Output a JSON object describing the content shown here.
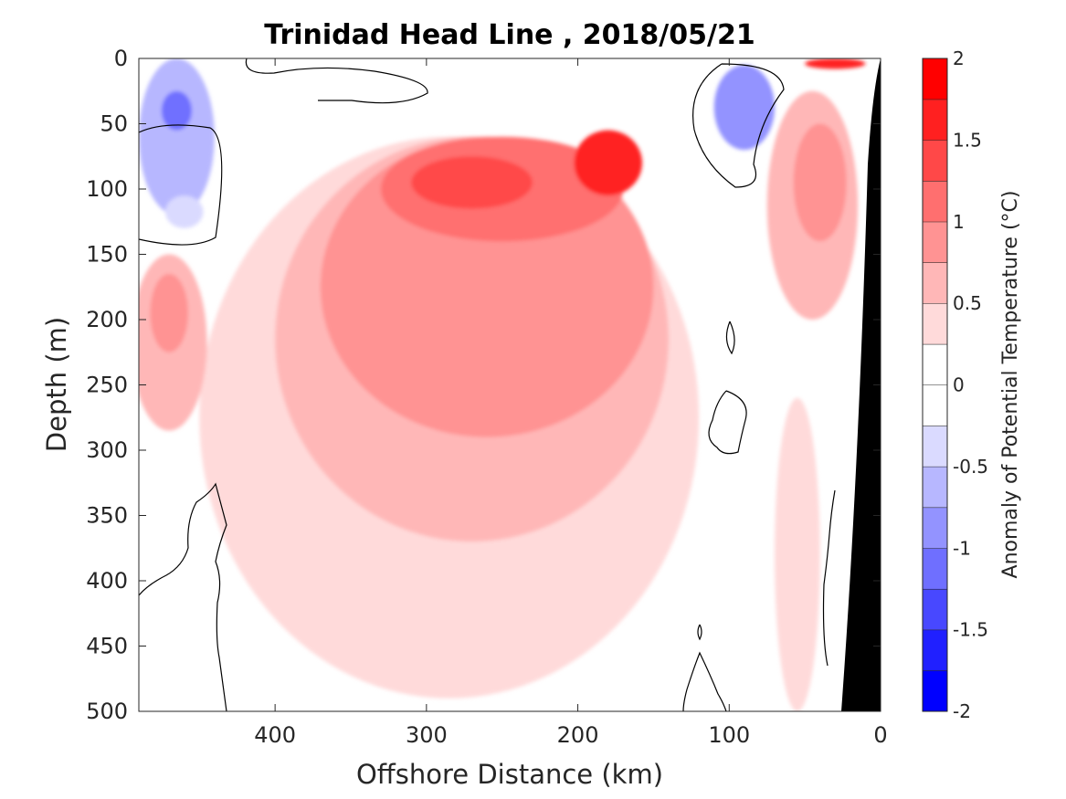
{
  "chart_data": {
    "type": "heatmap",
    "title": "Trinidad Head Line , 2018/05/21",
    "xlabel": "Offshore Distance (km)",
    "ylabel": "Depth (m)",
    "colorbar_label": "Anomaly of Potential Temperature (°C)",
    "xlim": [
      490,
      0
    ],
    "ylim": [
      500,
      0
    ],
    "x_ticks": [
      400,
      300,
      200,
      100,
      0
    ],
    "y_ticks": [
      0,
      50,
      100,
      150,
      200,
      250,
      300,
      350,
      400,
      450,
      500
    ],
    "colorbar_ticks": [
      2,
      1.5,
      1,
      0.5,
      0,
      -0.5,
      -1,
      -1.5,
      -2
    ],
    "colorbar_levels": [
      -2,
      -1.75,
      -1.5,
      -1.25,
      -1,
      -0.75,
      -0.5,
      -0.25,
      0,
      0.25,
      0.5,
      0.75,
      1,
      1.25,
      1.5,
      1.75,
      2
    ],
    "colorbar_colors": [
      "#0000ff",
      "#2020ff",
      "#4848ff",
      "#6f6fff",
      "#9393ff",
      "#b7b7ff",
      "#dadaff",
      "#ffffff",
      "#ffffff",
      "#ffdada",
      "#ffb7b7",
      "#ff9393",
      "#ff6f6f",
      "#ff4848",
      "#ff2020",
      "#ff0000"
    ],
    "bathymetry_color": "#000000",
    "grid": false,
    "features": [
      {
        "kind": "positive",
        "level": 0.25,
        "center_km": 285,
        "center_m": 210,
        "width_km": 330,
        "depth_range_m": [
          60,
          490
        ]
      },
      {
        "kind": "positive",
        "level": 0.5,
        "center_km": 270,
        "center_m": 180,
        "width_km": 260,
        "depth_range_m": [
          60,
          370
        ]
      },
      {
        "kind": "positive",
        "level": 0.75,
        "center_km": 260,
        "center_m": 140,
        "width_km": 220,
        "depth_range_m": [
          60,
          290
        ]
      },
      {
        "kind": "positive",
        "level": 1.0,
        "center_km": 250,
        "center_m": 95,
        "width_km": 160,
        "depth_range_m": [
          60,
          140
        ]
      },
      {
        "kind": "positive",
        "level": 1.25,
        "center_km": 270,
        "center_m": 95,
        "width_km": 80,
        "depth_range_m": [
          75,
          115
        ]
      },
      {
        "kind": "positive",
        "level": 1.5,
        "center_km": 180,
        "center_m": 80,
        "width_km": 45,
        "depth_range_m": [
          55,
          105
        ]
      },
      {
        "kind": "positive",
        "level": 0.5,
        "center_km": 470,
        "center_m": 215,
        "width_km": 50,
        "depth_range_m": [
          150,
          285
        ]
      },
      {
        "kind": "positive",
        "level": 0.75,
        "center_km": 470,
        "center_m": 205,
        "width_km": 25,
        "depth_range_m": [
          165,
          225
        ]
      },
      {
        "kind": "positive",
        "level": 0.5,
        "center_km": 45,
        "center_m": 150,
        "width_km": 60,
        "depth_range_m": [
          25,
          200
        ]
      },
      {
        "kind": "positive",
        "level": 0.75,
        "center_km": 40,
        "center_m": 90,
        "width_km": 35,
        "depth_range_m": [
          50,
          140
        ]
      },
      {
        "kind": "positive",
        "level": 1.5,
        "center_km": 30,
        "center_m": 3,
        "width_km": 40,
        "depth_range_m": [
          0,
          8
        ]
      },
      {
        "kind": "positive",
        "level": 0.25,
        "center_km": 55,
        "center_m": 380,
        "width_km": 30,
        "depth_range_m": [
          260,
          500
        ]
      },
      {
        "kind": "negative",
        "level": -0.75,
        "center_km": 465,
        "center_m": 55,
        "width_km": 50,
        "depth_range_m": [
          0,
          120
        ]
      },
      {
        "kind": "negative",
        "level": -1.25,
        "center_km": 465,
        "center_m": 40,
        "width_km": 20,
        "depth_range_m": [
          25,
          55
        ]
      },
      {
        "kind": "negative",
        "level": -0.5,
        "center_km": 460,
        "center_m": 120,
        "width_km": 25,
        "depth_range_m": [
          105,
          130
        ]
      },
      {
        "kind": "negative",
        "level": -1.0,
        "center_km": 90,
        "center_m": 30,
        "width_km": 40,
        "depth_range_m": [
          5,
          70
        ]
      },
      {
        "kind": "negative",
        "level": -0.25,
        "center_km": 240,
        "center_m": 15,
        "width_km": 60,
        "depth_range_m": [
          0,
          25
        ]
      },
      {
        "kind": "negative",
        "level": -0.25,
        "center_km": 330,
        "center_m": 25,
        "width_km": 35,
        "depth_range_m": [
          15,
          35
        ]
      }
    ]
  }
}
